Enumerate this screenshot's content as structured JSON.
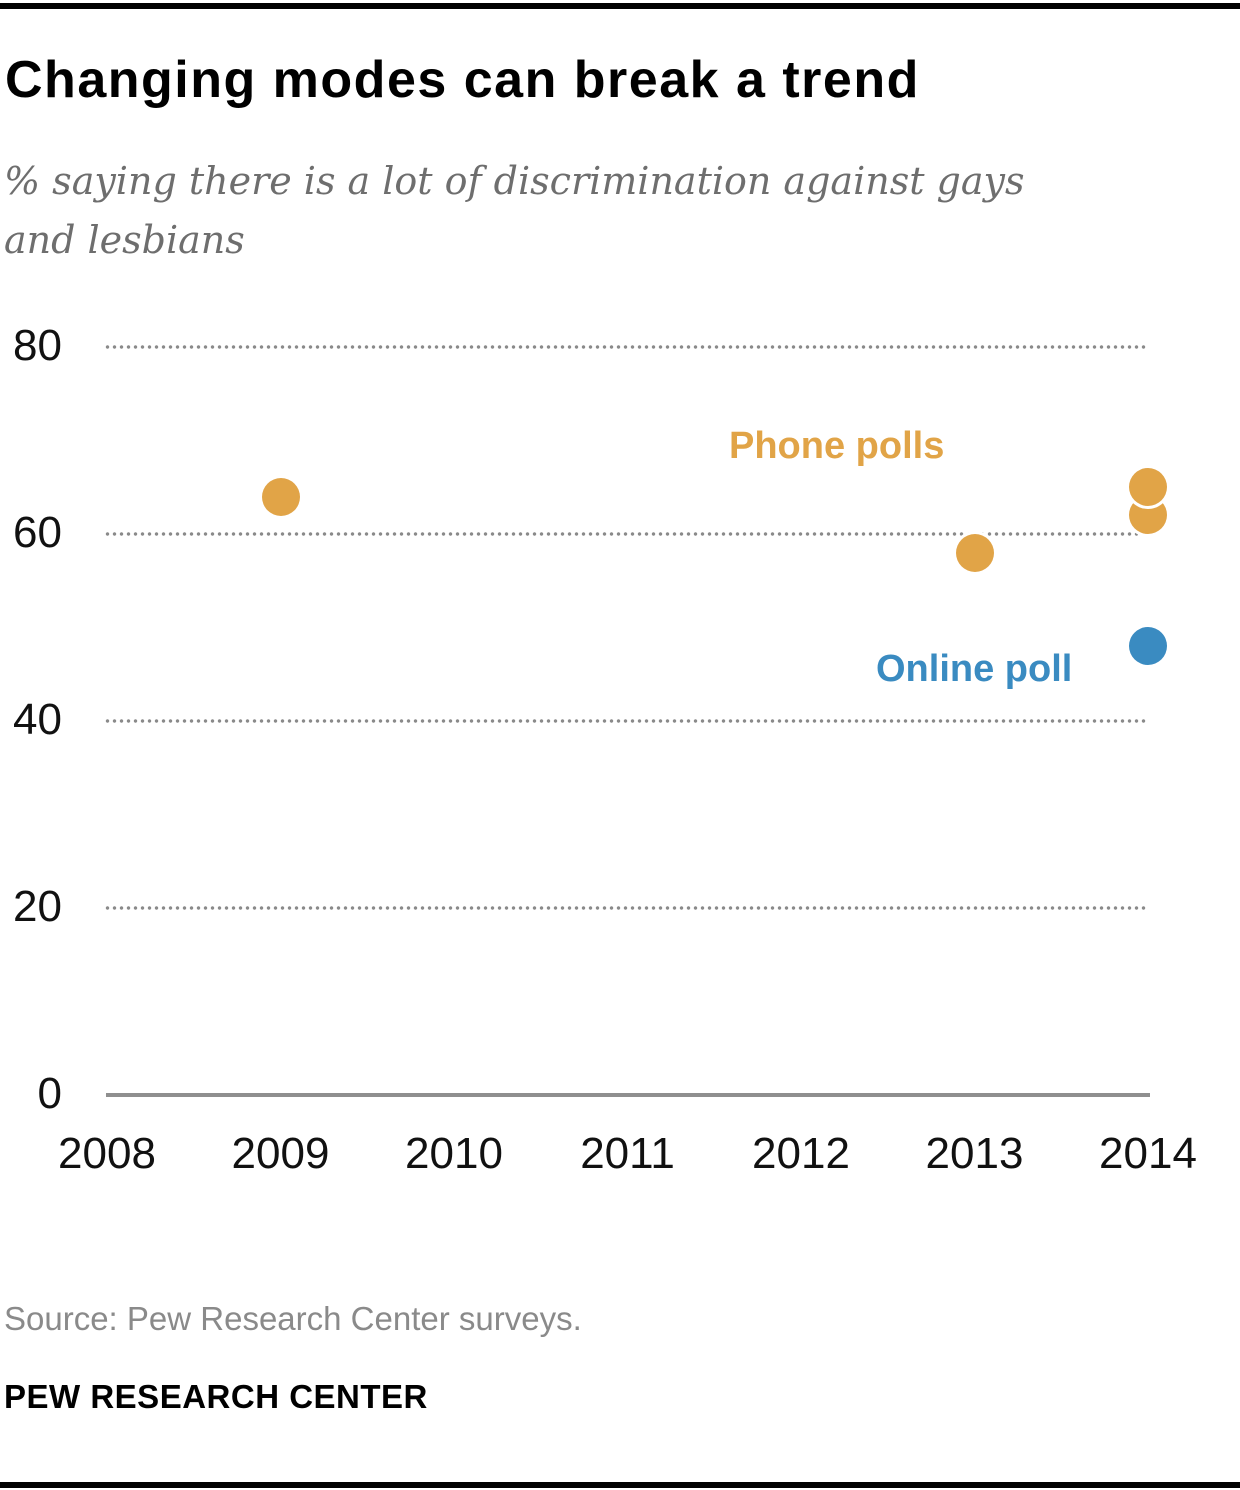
{
  "header": {
    "title": "Changing modes can break a trend",
    "subtitle_lines": [
      "% saying there is a lot of discrimination against gays",
      "and lesbians"
    ]
  },
  "chart_data": {
    "type": "scatter",
    "title": "Changing modes can break a trend",
    "subtitle": "% saying there is a lot of discrimination against gays and lesbians",
    "xlabel": "",
    "ylabel": "",
    "x_ticks": [
      2008,
      2009,
      2010,
      2011,
      2012,
      2013,
      2014
    ],
    "y_ticks": [
      0,
      20,
      40,
      60,
      80
    ],
    "xlim": [
      2008,
      2014
    ],
    "ylim": [
      0,
      80
    ],
    "grid": "horizontal dotted, solid baseline at 0",
    "legend_position": "inline annotations",
    "series": [
      {
        "name": "Phone polls",
        "color": "#E1A447",
        "points": [
          {
            "x": 2009,
            "y": 64
          },
          {
            "x": 2013,
            "y": 58
          },
          {
            "x": 2014,
            "y": 62
          },
          {
            "x": 2014,
            "y": 65
          }
        ]
      },
      {
        "name": "Online poll",
        "color": "#3A8BC1",
        "points": [
          {
            "x": 2014,
            "y": 48
          }
        ]
      }
    ],
    "annotations": [
      {
        "text": "Phone polls",
        "series": "Phone polls"
      },
      {
        "text": "Online poll",
        "series": "Online poll"
      }
    ]
  },
  "colors": {
    "phone_orange": "#E1A447",
    "online_blue": "#3A8BC1",
    "gridline_gray": "#8A8A8A",
    "axis_gray": "#8F8F8F",
    "subtitle_gray": "#6E6E6E",
    "source_gray": "#8A8A8A",
    "rule_black": "#000000"
  },
  "footer": {
    "source": "Source: Pew Research Center surveys.",
    "brand": "PEW RESEARCH CENTER"
  }
}
